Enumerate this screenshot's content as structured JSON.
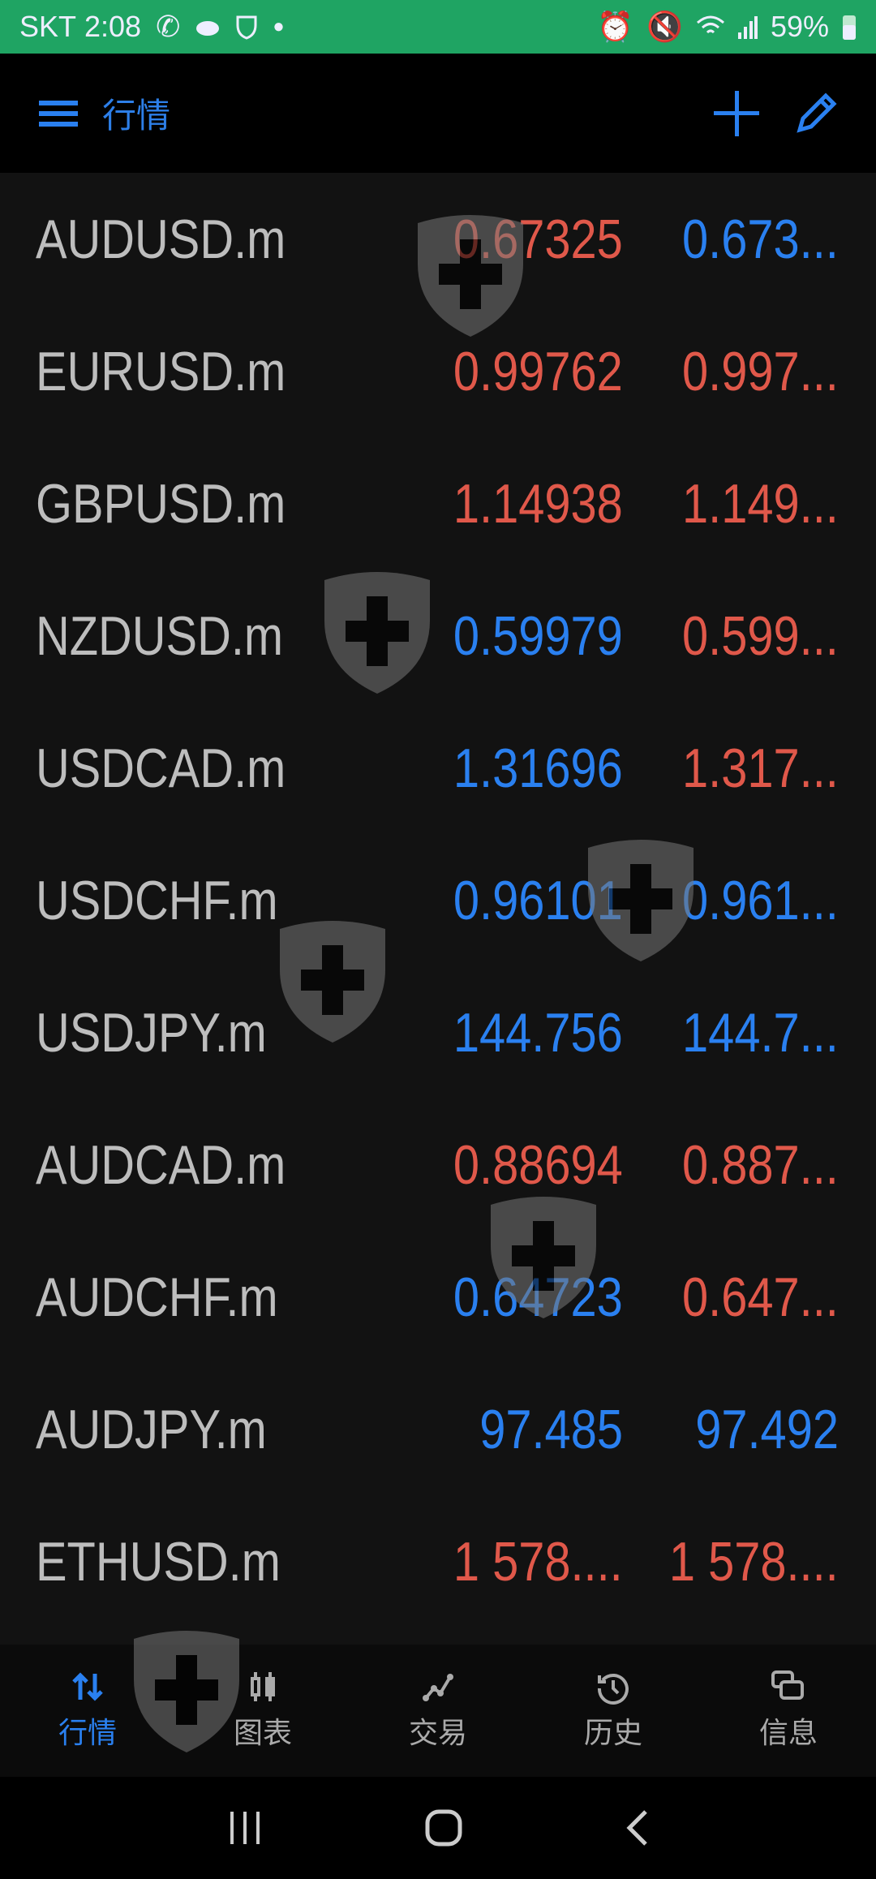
{
  "status_bar": {
    "carrier": "SKT",
    "time": "2:08",
    "battery": "59%",
    "icons": [
      "phone-icon",
      "cloud-icon",
      "shield-icon",
      "alarm-icon",
      "mute-icon",
      "wifi-icon",
      "signal-icon",
      "battery-icon"
    ]
  },
  "header": {
    "title": "行情",
    "icons": [
      "menu-icon",
      "add-icon",
      "edit-icon"
    ]
  },
  "quotes": [
    {
      "symbol": "AUDUSD.m",
      "bid": "0.67325",
      "ask": "0.673...",
      "bid_dir": "down",
      "ask_dir": "up"
    },
    {
      "symbol": "EURUSD.m",
      "bid": "0.99762",
      "ask": "0.997...",
      "bid_dir": "down",
      "ask_dir": "down"
    },
    {
      "symbol": "GBPUSD.m",
      "bid": "1.14938",
      "ask": "1.149...",
      "bid_dir": "down",
      "ask_dir": "down"
    },
    {
      "symbol": "NZDUSD.m",
      "bid": "0.59979",
      "ask": "0.599...",
      "bid_dir": "up",
      "ask_dir": "down"
    },
    {
      "symbol": "USDCAD.m",
      "bid": "1.31696",
      "ask": "1.317...",
      "bid_dir": "up",
      "ask_dir": "down"
    },
    {
      "symbol": "USDCHF.m",
      "bid": "0.96101",
      "ask": "0.961...",
      "bid_dir": "up",
      "ask_dir": "up"
    },
    {
      "symbol": "USDJPY.m",
      "bid": "144.756",
      "ask": "144.7...",
      "bid_dir": "up",
      "ask_dir": "up"
    },
    {
      "symbol": "AUDCAD.m",
      "bid": "0.88694",
      "ask": "0.887...",
      "bid_dir": "down",
      "ask_dir": "down"
    },
    {
      "symbol": "AUDCHF.m",
      "bid": "0.64723",
      "ask": "0.647...",
      "bid_dir": "up",
      "ask_dir": "down"
    },
    {
      "symbol": "AUDJPY.m",
      "bid": "97.485",
      "ask": "97.492",
      "bid_dir": "up",
      "ask_dir": "up"
    },
    {
      "symbol": "ETHUSD.m",
      "bid": "1 578....",
      "ask": "1 578....",
      "bid_dir": "down",
      "ask_dir": "down"
    }
  ],
  "bottom_nav": [
    {
      "label": "行情",
      "icon": "quotes-icon",
      "active": true
    },
    {
      "label": "图表",
      "icon": "chart-icon",
      "active": false
    },
    {
      "label": "交易",
      "icon": "trade-icon",
      "active": false
    },
    {
      "label": "历史",
      "icon": "history-icon",
      "active": false
    },
    {
      "label": "信息",
      "icon": "messages-icon",
      "active": false
    }
  ],
  "colors": {
    "up": "#2a80f0",
    "down": "#e0584a",
    "status_bar": "#1fa463"
  }
}
